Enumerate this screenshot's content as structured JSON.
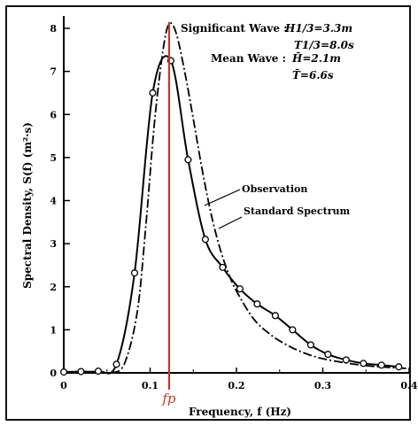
{
  "chart_data": {
    "type": "line",
    "xlabel": "Frequency, f (Hz)",
    "ylabel": "Spectral Density, S(f) (m²·s)",
    "xlim": [
      0,
      0.4
    ],
    "ylim": [
      0,
      8.2
    ],
    "x_ticks": [
      {
        "value": 0,
        "label": "0"
      },
      {
        "value": 0.1,
        "label": "0.1"
      },
      {
        "value": 0.2,
        "label": "0.2"
      },
      {
        "value": 0.3,
        "label": "0.3"
      },
      {
        "value": 0.4,
        "label": "0.4"
      }
    ],
    "y_ticks": [
      {
        "value": 0,
        "label": "0"
      },
      {
        "value": 1,
        "label": "1"
      },
      {
        "value": 2,
        "label": "2"
      },
      {
        "value": 3,
        "label": "3"
      },
      {
        "value": 4,
        "label": "4"
      },
      {
        "value": 5,
        "label": "5"
      },
      {
        "value": 6,
        "label": "6"
      },
      {
        "value": 7,
        "label": "7"
      },
      {
        "value": 8,
        "label": "8"
      }
    ],
    "series": [
      {
        "name": "Observation",
        "style": "solid-with-open-circles",
        "color": "#000000",
        "points": [
          [
            0.0,
            0.02
          ],
          [
            0.02,
            0.03
          ],
          [
            0.04,
            0.04
          ],
          [
            0.061,
            0.2
          ],
          [
            0.082,
            2.32
          ],
          [
            0.103,
            6.5
          ],
          [
            0.124,
            7.25
          ],
          [
            0.144,
            4.95
          ],
          [
            0.164,
            3.1
          ],
          [
            0.184,
            2.45
          ],
          [
            0.204,
            1.95
          ],
          [
            0.224,
            1.6
          ],
          [
            0.245,
            1.33
          ],
          [
            0.265,
            1.0
          ],
          [
            0.286,
            0.65
          ],
          [
            0.306,
            0.43
          ],
          [
            0.327,
            0.3
          ],
          [
            0.347,
            0.22
          ],
          [
            0.368,
            0.18
          ],
          [
            0.388,
            0.14
          ]
        ]
      },
      {
        "name": "Standard Spectrum",
        "style": "dash-dot",
        "color": "#000000",
        "points": [
          [
            0.055,
            0.0
          ],
          [
            0.07,
            0.2
          ],
          [
            0.085,
            1.4
          ],
          [
            0.095,
            3.4
          ],
          [
            0.105,
            5.8
          ],
          [
            0.115,
            7.5
          ],
          [
            0.122,
            8.1
          ],
          [
            0.13,
            7.9
          ],
          [
            0.14,
            7.0
          ],
          [
            0.15,
            5.9
          ],
          [
            0.16,
            4.75
          ],
          [
            0.17,
            3.75
          ],
          [
            0.18,
            2.95
          ],
          [
            0.19,
            2.35
          ],
          [
            0.2,
            1.9
          ],
          [
            0.22,
            1.25
          ],
          [
            0.24,
            0.88
          ],
          [
            0.26,
            0.63
          ],
          [
            0.28,
            0.45
          ],
          [
            0.3,
            0.33
          ],
          [
            0.33,
            0.22
          ],
          [
            0.36,
            0.15
          ],
          [
            0.4,
            0.1
          ]
        ]
      }
    ],
    "peak_frequency": {
      "label": "fp",
      "value": 0.122,
      "color": "#c0392b"
    },
    "annotations": {
      "significant_wave_label": "Significant Wave :",
      "h13": "H1/3=3.3m",
      "t13": "T1/3=8.0s",
      "mean_wave_label": "Mean Wave :",
      "hbar": "H̄=2.1m",
      "tbar": "T̄=6.6s"
    }
  }
}
